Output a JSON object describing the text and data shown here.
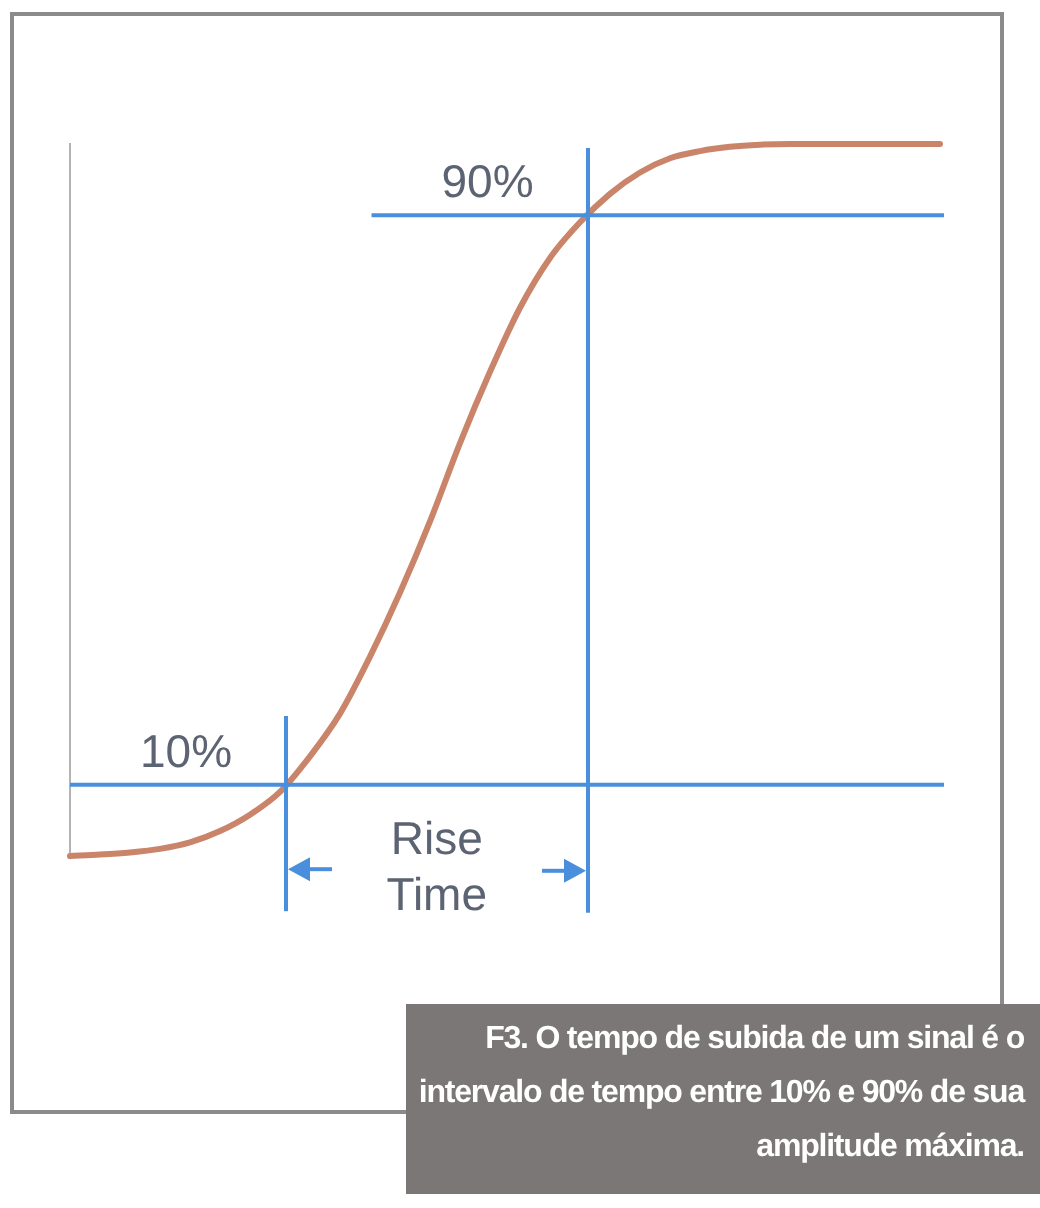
{
  "chart_data": {
    "type": "line",
    "categories": [
      null,
      null,
      null,
      null,
      null,
      null,
      null,
      null,
      null,
      null,
      null,
      null,
      null,
      null,
      null,
      null,
      null,
      null,
      null,
      null,
      null,
      null,
      null,
      null,
      null,
      null,
      null,
      null,
      null,
      null
    ],
    "values": [
      0,
      0.2,
      0.5,
      1,
      1.9,
      3.5,
      5.8,
      9,
      14,
      20,
      28,
      37,
      47,
      58,
      68,
      77,
      84,
      89,
      93,
      96,
      98,
      99,
      99.6,
      99.9,
      100,
      100,
      100,
      100,
      100,
      100
    ],
    "color": "#c98469",
    "ylim": [
      0,
      100
    ],
    "tick_labels": false,
    "ref_lines": [
      {
        "axis": "y",
        "value": 10,
        "label": "10%",
        "color": "#4a8fdc"
      },
      {
        "axis": "y",
        "value": 90,
        "label": "90%",
        "color": "#4a8fdc"
      }
    ],
    "annotations": [
      "Rise Time",
      "F3. O tempo de subida de um sinal é o intervalo de tempo entre 10% e 90% de sua amplitude máxima."
    ]
  }
}
